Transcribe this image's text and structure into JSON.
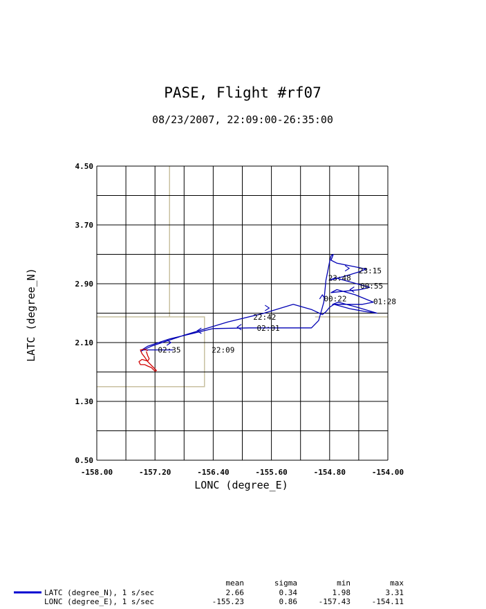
{
  "chart_data": {
    "type": "line",
    "title": "PASE, Flight #rf07",
    "subtitle": "08/23/2007, 22:09:00-26:35:00",
    "xlabel": "LONC (degree_E)",
    "ylabel": "LATC (degree_N)",
    "xlim": [
      -158.0,
      -154.0
    ],
    "ylim": [
      0.5,
      4.5
    ],
    "x_ticks": [
      "-158.00",
      "-157.20",
      "-156.40",
      "-155.60",
      "-154.80",
      "-154.00"
    ],
    "y_ticks": [
      "4.50",
      "3.70",
      "2.90",
      "2.10",
      "1.30",
      "0.50"
    ],
    "grid": true,
    "colors": {
      "track": "#0000b4",
      "offshore": "#d00000",
      "region_box": "#c8c0a0",
      "grid": "#000000"
    },
    "region_boxes": [
      [
        [
          -158.0,
          2.45
        ],
        [
          -156.52,
          2.45
        ],
        [
          -156.52,
          1.5
        ],
        [
          -158.0,
          1.5
        ]
      ],
      [
        [
          -157.0,
          4.5
        ],
        [
          -157.0,
          2.45
        ]
      ],
      [
        [
          -155.0,
          2.45
        ],
        [
          -154.0,
          2.45
        ]
      ]
    ],
    "series": [
      {
        "x": [
          -156.95,
          -157.1,
          -157.28,
          -157.38,
          -157.3,
          -157.0,
          -156.4,
          -155.9,
          -155.4,
          -155.15,
          -155.05,
          -154.95,
          -154.88,
          -154.85,
          -154.82,
          -154.8,
          -154.78,
          -154.75,
          -154.78,
          -154.7,
          -154.5,
          -154.3,
          -154.4,
          -154.6,
          -154.8,
          -154.72,
          -154.5,
          -154.25,
          -154.38,
          -154.58,
          -154.78,
          -154.7,
          -154.45,
          -154.2,
          -154.35,
          -154.55,
          -154.76,
          -154.68,
          -154.42,
          -154.15,
          -154.3,
          -154.52,
          -154.74,
          -154.8,
          -154.85,
          -154.9,
          -155.05,
          -155.3,
          -155.7,
          -156.2,
          -156.8,
          -157.25,
          -157.4
        ],
        "y": [
          2.0,
          2.0,
          2.0,
          2.0,
          2.05,
          2.15,
          2.29,
          2.3,
          2.3,
          2.3,
          2.3,
          2.4,
          2.65,
          2.95,
          3.1,
          3.2,
          3.28,
          3.3,
          3.22,
          3.18,
          3.14,
          3.1,
          3.06,
          3.0,
          2.95,
          2.98,
          2.92,
          2.85,
          2.82,
          2.8,
          2.78,
          2.82,
          2.75,
          2.65,
          2.62,
          2.62,
          2.62,
          2.65,
          2.58,
          2.5,
          2.52,
          2.56,
          2.62,
          2.58,
          2.52,
          2.48,
          2.55,
          2.62,
          2.5,
          2.38,
          2.2,
          2.05,
          1.98
        ]
      },
      {
        "x": [
          -157.32,
          -157.3,
          -157.28,
          -157.3,
          -157.38,
          -157.42,
          -157.4,
          -157.34,
          -157.3,
          -157.25,
          -157.22,
          -157.2,
          -157.18,
          -157.24,
          -157.3,
          -157.34,
          -157.38,
          -157.4,
          -157.34,
          -157.3
        ],
        "y": [
          1.98,
          1.92,
          1.88,
          1.85,
          1.87,
          1.84,
          1.8,
          1.8,
          1.78,
          1.76,
          1.73,
          1.71,
          1.72,
          1.78,
          1.84,
          1.9,
          1.95,
          2.0,
          2.01,
          1.99
        ]
      }
    ],
    "direction_arrows": [
      {
        "x": -156.6,
        "y": 2.26,
        "dir": "left"
      },
      {
        "x": -156.05,
        "y": 2.31,
        "dir": "left"
      },
      {
        "x": -155.65,
        "y": 2.57,
        "dir": "right"
      },
      {
        "x": -154.9,
        "y": 2.73,
        "dir": "up"
      },
      {
        "x": -154.55,
        "y": 3.11,
        "dir": "right"
      },
      {
        "x": -154.5,
        "y": 2.82,
        "dir": "left"
      },
      {
        "x": -157.0,
        "y": 2.1,
        "dir": "right"
      }
    ],
    "annotations": [
      {
        "text": "22:09",
        "x": -156.42,
        "y": 2.0
      },
      {
        "text": "22:42",
        "x": -155.85,
        "y": 2.45
      },
      {
        "text": "23:15",
        "x": -154.4,
        "y": 3.08
      },
      {
        "text": "23:48",
        "x": -154.82,
        "y": 2.98
      },
      {
        "text": "00:22",
        "x": -154.88,
        "y": 2.7
      },
      {
        "text": "00:55",
        "x": -154.38,
        "y": 2.87
      },
      {
        "text": "01:28",
        "x": -154.2,
        "y": 2.66
      },
      {
        "text": "02:01",
        "x": -155.8,
        "y": 2.3
      },
      {
        "text": "02:35",
        "x": -157.16,
        "y": 2.0
      }
    ]
  },
  "stats": {
    "headers": [
      "mean",
      "sigma",
      "min",
      "max"
    ],
    "rows": [
      {
        "label": "LATC (degree_N), 1 s/sec",
        "mean": "2.66",
        "sigma": "0.34",
        "min": "1.98",
        "max": "3.31",
        "legend_color": "#0000d0"
      },
      {
        "label": "LONC (degree_E), 1 s/sec",
        "mean": "-155.23",
        "sigma": "0.86",
        "min": "-157.43",
        "max": "-154.11"
      }
    ]
  }
}
